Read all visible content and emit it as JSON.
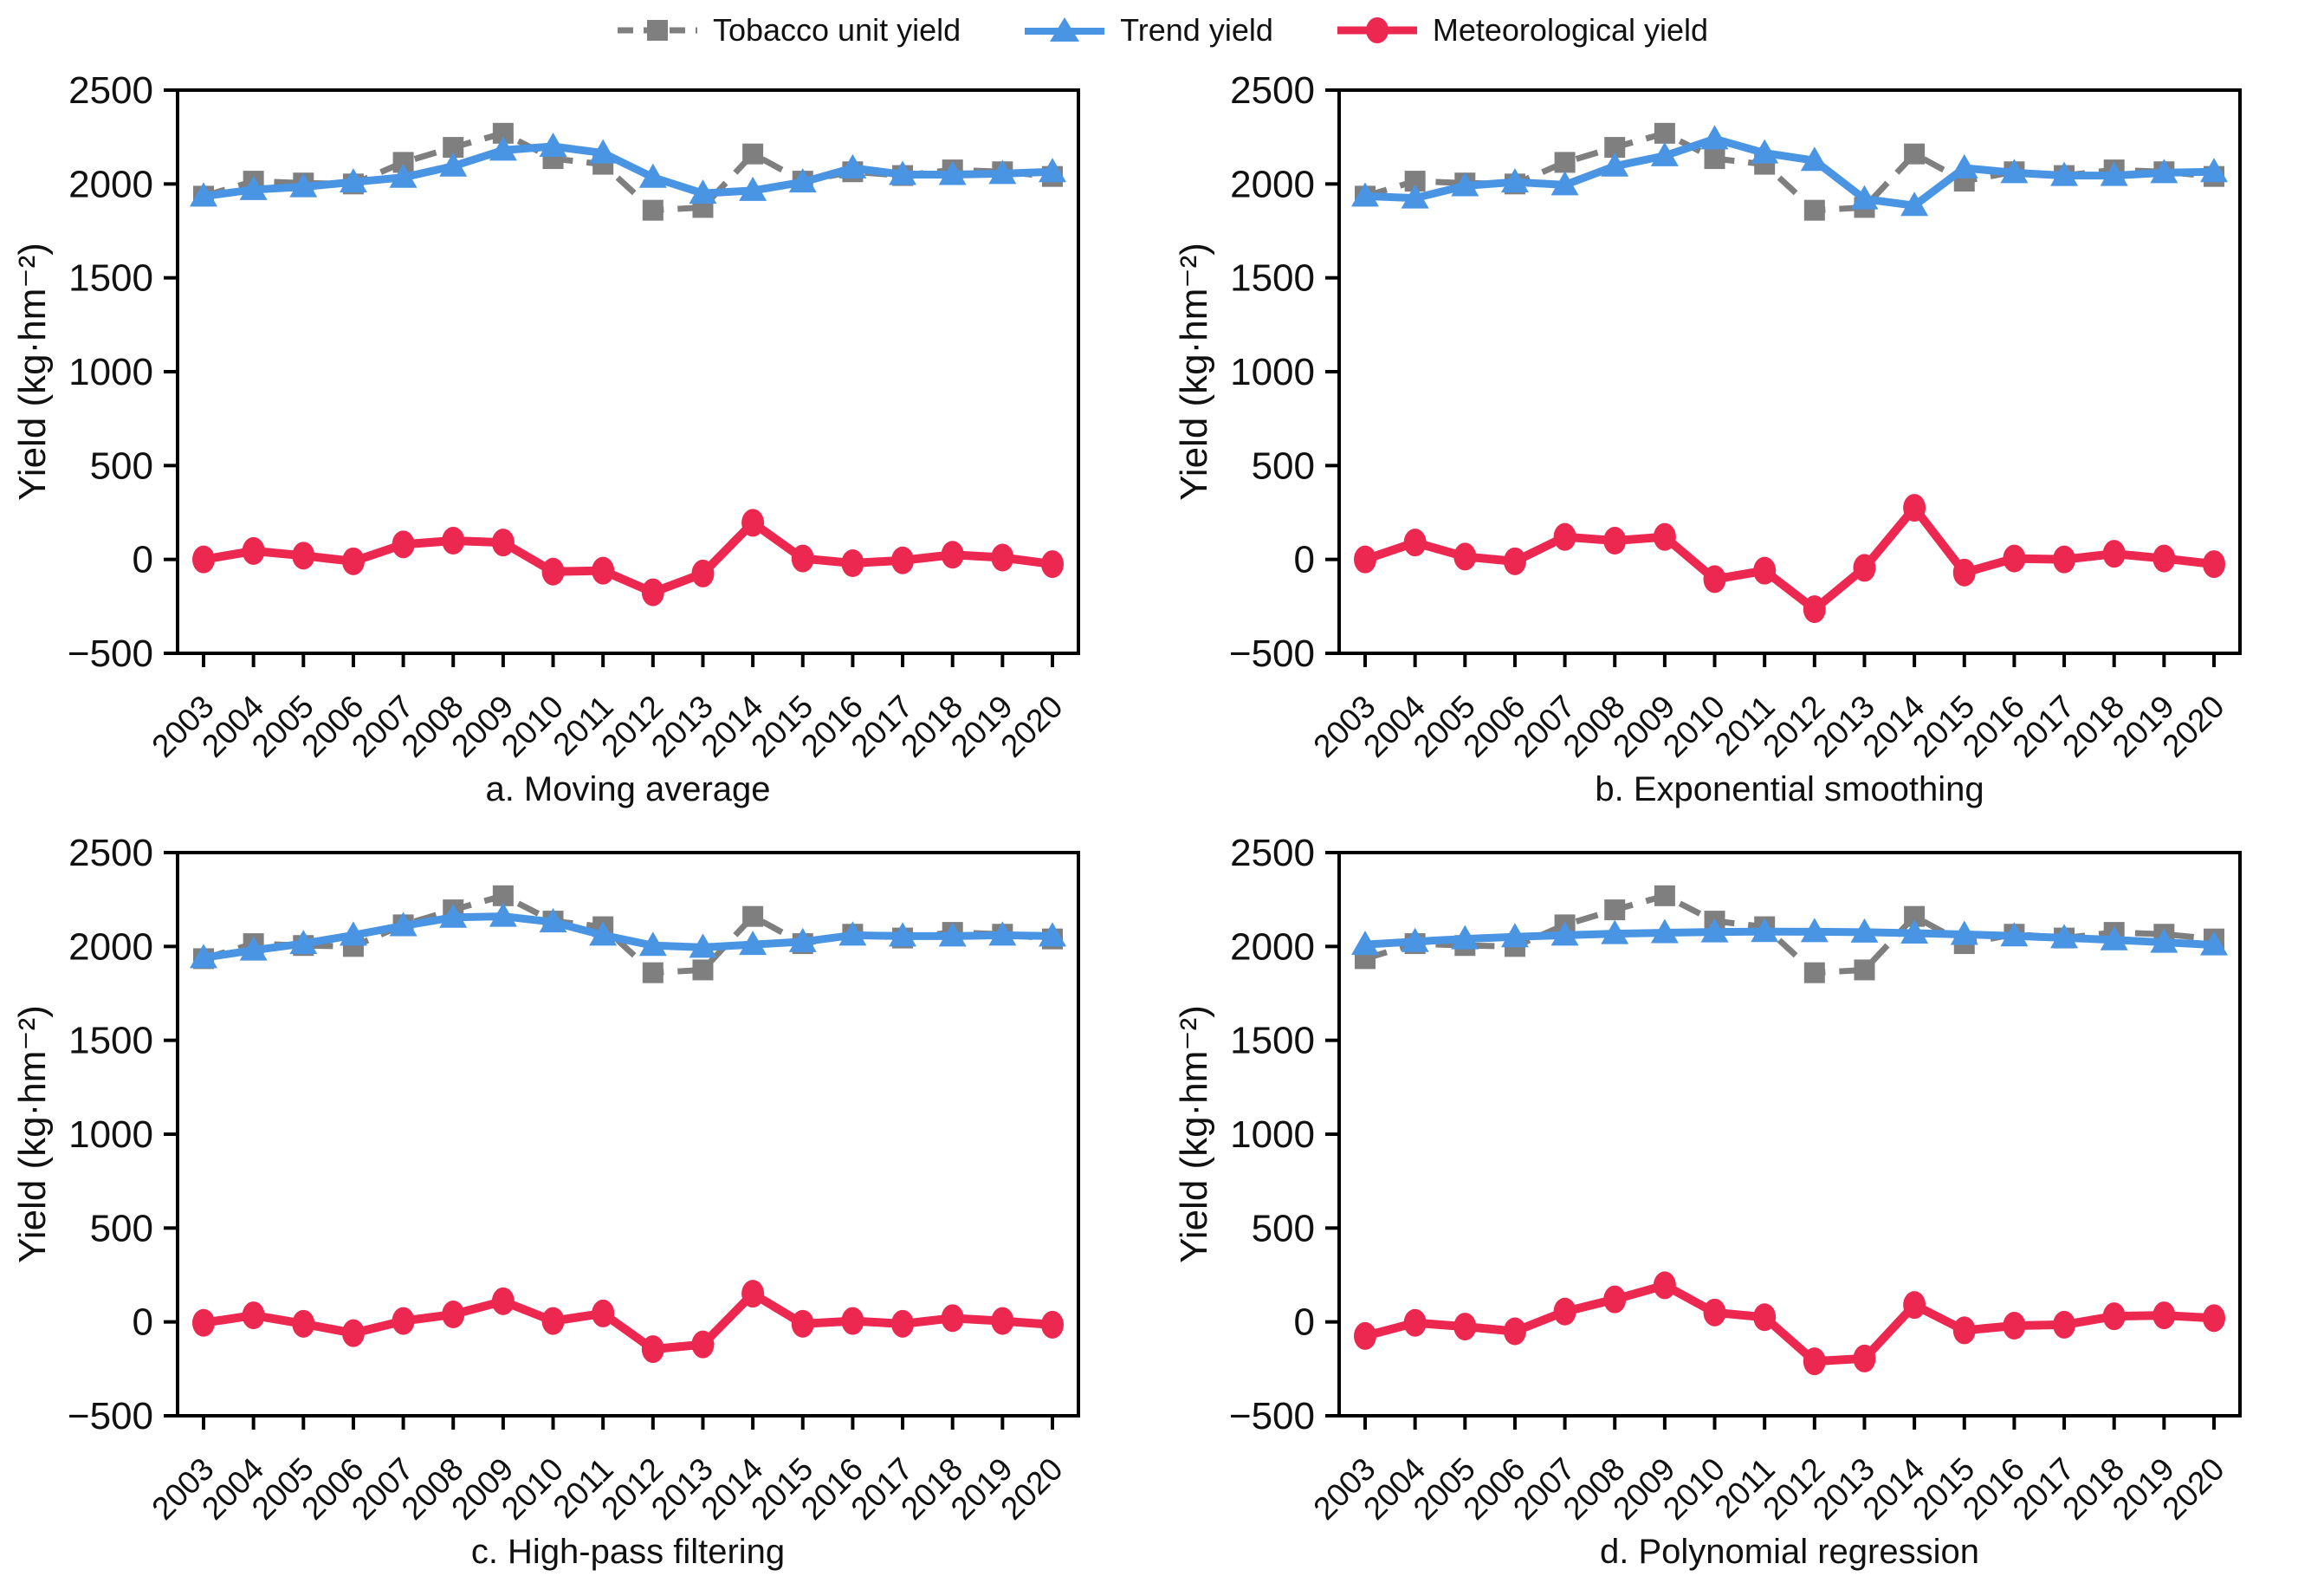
{
  "legend": {
    "items": [
      {
        "label": "Tobacco unit yield",
        "color": "#7f7f7f",
        "marker": "square",
        "line": "dashed"
      },
      {
        "label": "Trend yield",
        "color": "#4a94e4",
        "marker": "triangle",
        "line": "solid"
      },
      {
        "label": "Meteorological yield",
        "color": "#ed2850",
        "marker": "circle",
        "line": "solid"
      }
    ]
  },
  "colors": {
    "tobacco": "#7f7f7f",
    "trend": "#4a94e4",
    "meteorological": "#ed2850",
    "axis": "#000000"
  },
  "axes": {
    "y_label": "Yield (kg·hm⁻²)",
    "y_min": -500,
    "y_max": 2500,
    "y_tick_step": 500,
    "y_ticks": [
      -500,
      0,
      500,
      1000,
      1500,
      2000,
      2500
    ],
    "years": [
      2003,
      2004,
      2005,
      2006,
      2007,
      2008,
      2009,
      2010,
      2011,
      2012,
      2013,
      2014,
      2015,
      2016,
      2017,
      2018,
      2019,
      2020
    ]
  },
  "chart_data": [
    {
      "type": "line",
      "title": "a. Moving average",
      "x": [
        2003,
        2004,
        2005,
        2006,
        2007,
        2008,
        2009,
        2010,
        2011,
        2012,
        2013,
        2014,
        2015,
        2016,
        2017,
        2018,
        2019,
        2020
      ],
      "xlabel": "",
      "ylabel": "Yield (kg·hm⁻²)",
      "ylim": [
        -500,
        2500
      ],
      "grid": false,
      "legend_position": "top-center",
      "series": [
        {
          "name": "Tobacco unit yield",
          "values": [
            1935,
            2015,
            2005,
            2000,
            2115,
            2195,
            2270,
            2135,
            2105,
            1860,
            1875,
            2160,
            2015,
            2065,
            2045,
            2075,
            2065,
            2040
          ]
        },
        {
          "name": "Trend yield",
          "values": [
            1935,
            1970,
            1985,
            2010,
            2035,
            2095,
            2180,
            2200,
            2165,
            2035,
            1950,
            1965,
            2010,
            2085,
            2050,
            2050,
            2055,
            2065
          ]
        },
        {
          "name": "Meteorological yield",
          "values": [
            0,
            45,
            20,
            -10,
            80,
            100,
            90,
            -65,
            -60,
            -175,
            -75,
            195,
            5,
            -20,
            -5,
            25,
            10,
            -25
          ]
        }
      ]
    },
    {
      "type": "line",
      "title": "b. Exponential smoothing",
      "x": [
        2003,
        2004,
        2005,
        2006,
        2007,
        2008,
        2009,
        2010,
        2011,
        2012,
        2013,
        2014,
        2015,
        2016,
        2017,
        2018,
        2019,
        2020
      ],
      "xlabel": "",
      "ylabel": "Yield (kg·hm⁻²)",
      "ylim": [
        -500,
        2500
      ],
      "grid": false,
      "legend_position": "top-center",
      "series": [
        {
          "name": "Tobacco unit yield",
          "values": [
            1935,
            2015,
            2005,
            2000,
            2115,
            2195,
            2270,
            2135,
            2105,
            1860,
            1875,
            2160,
            2015,
            2065,
            2045,
            2075,
            2065,
            2040
          ]
        },
        {
          "name": "Trend yield",
          "values": [
            1935,
            1925,
            1990,
            2010,
            1995,
            2095,
            2150,
            2240,
            2165,
            2125,
            1920,
            1885,
            2085,
            2060,
            2045,
            2045,
            2060,
            2065
          ]
        },
        {
          "name": "Meteorological yield",
          "values": [
            0,
            90,
            15,
            -10,
            120,
            100,
            120,
            -105,
            -60,
            -265,
            -45,
            275,
            -70,
            5,
            0,
            30,
            5,
            -25
          ]
        }
      ]
    },
    {
      "type": "line",
      "title": "c. High-pass filtering",
      "x": [
        2003,
        2004,
        2005,
        2006,
        2007,
        2008,
        2009,
        2010,
        2011,
        2012,
        2013,
        2014,
        2015,
        2016,
        2017,
        2018,
        2019,
        2020
      ],
      "xlabel": "",
      "ylabel": "Yield (kg·hm⁻²)",
      "ylim": [
        -500,
        2500
      ],
      "grid": false,
      "legend_position": "top-center",
      "series": [
        {
          "name": "Tobacco unit yield",
          "values": [
            1935,
            2015,
            2005,
            2000,
            2115,
            2195,
            2270,
            2135,
            2105,
            1860,
            1875,
            2160,
            2015,
            2065,
            2045,
            2075,
            2065,
            2040
          ]
        },
        {
          "name": "Trend yield",
          "values": [
            1940,
            1980,
            2015,
            2060,
            2110,
            2155,
            2160,
            2130,
            2060,
            2005,
            1995,
            2010,
            2025,
            2060,
            2055,
            2055,
            2060,
            2055
          ]
        },
        {
          "name": "Meteorological yield",
          "values": [
            -5,
            35,
            -10,
            -60,
            5,
            40,
            110,
            5,
            45,
            -145,
            -120,
            150,
            -10,
            5,
            -10,
            20,
            5,
            -15
          ]
        }
      ]
    },
    {
      "type": "line",
      "title": "d. Polynomial regression",
      "x": [
        2003,
        2004,
        2005,
        2006,
        2007,
        2008,
        2009,
        2010,
        2011,
        2012,
        2013,
        2014,
        2015,
        2016,
        2017,
        2018,
        2019,
        2020
      ],
      "xlabel": "",
      "ylabel": "Yield (kg·hm⁻²)",
      "ylim": [
        -500,
        2500
      ],
      "grid": false,
      "legend_position": "top-center",
      "series": [
        {
          "name": "Tobacco unit yield",
          "values": [
            1935,
            2015,
            2005,
            2000,
            2115,
            2195,
            2270,
            2135,
            2105,
            1860,
            1875,
            2160,
            2015,
            2065,
            2045,
            2075,
            2065,
            2040
          ]
        },
        {
          "name": "Trend yield",
          "values": [
            2010,
            2026,
            2040,
            2051,
            2060,
            2068,
            2073,
            2077,
            2079,
            2078,
            2076,
            2071,
            2064,
            2056,
            2046,
            2035,
            2022,
            2008
          ]
        },
        {
          "name": "Meteorological yield",
          "values": [
            -75,
            -5,
            -25,
            -50,
            55,
            120,
            195,
            50,
            25,
            -210,
            -195,
            90,
            -45,
            -20,
            -15,
            30,
            35,
            20
          ]
        }
      ]
    }
  ]
}
